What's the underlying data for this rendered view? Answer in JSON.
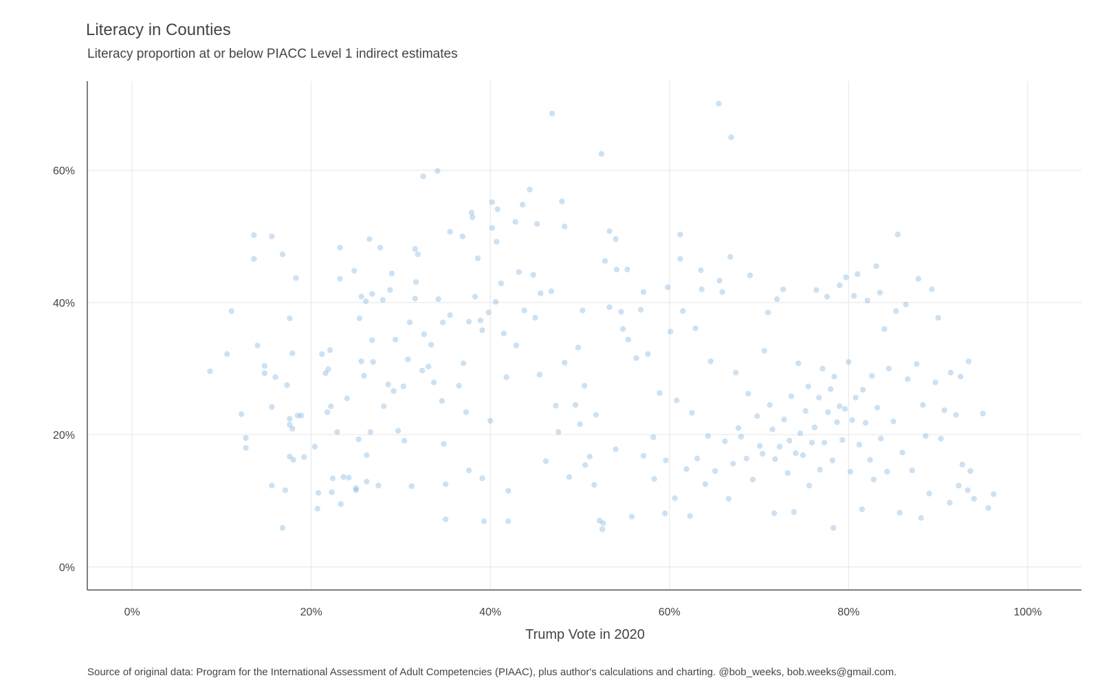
{
  "chart_data": {
    "type": "scatter",
    "title": "Literacy in Counties",
    "subtitle": "Literacy proportion at or below PIACC Level 1 indirect estimates",
    "xlabel": "Trump Vote in 2020",
    "ylabel": "",
    "caption": "Source of original data: Program for the International Assessment of Adult Competencies (PIAAC), plus author's calculations and charting. @bob_weeks, bob.weeks@gmail.com.",
    "xlim": [
      -5,
      106
    ],
    "ylim": [
      -3.5,
      73.5
    ],
    "x_ticks": [
      0,
      20,
      40,
      60,
      80,
      100
    ],
    "x_tick_labels": [
      "0%",
      "20%",
      "40%",
      "60%",
      "80%",
      "100%"
    ],
    "y_ticks": [
      0,
      20,
      40,
      60
    ],
    "y_tick_labels": [
      "0%",
      "20%",
      "40%",
      "60%"
    ],
    "grid": true,
    "legend": "none",
    "point_color": "#5b9bd5",
    "points": [
      [
        8.7,
        29.6
      ],
      [
        11.1,
        38.7
      ],
      [
        10.6,
        32.2
      ],
      [
        12.2,
        23.1
      ],
      [
        12.7,
        19.5
      ],
      [
        12.7,
        18.0
      ],
      [
        13.6,
        50.2
      ],
      [
        13.6,
        46.6
      ],
      [
        14.0,
        33.5
      ],
      [
        14.8,
        30.4
      ],
      [
        14.8,
        29.3
      ],
      [
        15.6,
        50.0
      ],
      [
        15.6,
        24.2
      ],
      [
        15.6,
        12.3
      ],
      [
        16.0,
        28.7
      ],
      [
        16.8,
        47.3
      ],
      [
        17.1,
        11.6
      ],
      [
        16.8,
        5.9
      ],
      [
        17.3,
        27.5
      ],
      [
        17.6,
        37.6
      ],
      [
        17.6,
        22.4
      ],
      [
        17.6,
        21.5
      ],
      [
        17.6,
        16.7
      ],
      [
        17.9,
        32.3
      ],
      [
        17.9,
        20.9
      ],
      [
        18.0,
        16.2
      ],
      [
        18.3,
        43.7
      ],
      [
        18.5,
        22.9
      ],
      [
        18.9,
        22.9
      ],
      [
        19.2,
        16.6
      ],
      [
        20.4,
        18.2
      ],
      [
        20.7,
        8.8
      ],
      [
        20.8,
        11.2
      ],
      [
        21.2,
        32.2
      ],
      [
        21.6,
        29.3
      ],
      [
        21.8,
        23.4
      ],
      [
        21.9,
        29.9
      ],
      [
        22.1,
        32.8
      ],
      [
        22.2,
        24.3
      ],
      [
        22.3,
        11.3
      ],
      [
        22.4,
        13.4
      ],
      [
        22.9,
        20.4
      ],
      [
        23.2,
        48.3
      ],
      [
        23.2,
        43.6
      ],
      [
        23.3,
        9.5
      ],
      [
        23.6,
        13.6
      ],
      [
        24.0,
        25.5
      ],
      [
        24.2,
        13.5
      ],
      [
        24.8,
        44.8
      ],
      [
        25.0,
        11.6
      ],
      [
        25.0,
        11.9
      ],
      [
        25.3,
        19.3
      ],
      [
        25.4,
        37.6
      ],
      [
        25.6,
        40.9
      ],
      [
        25.6,
        31.1
      ],
      [
        25.9,
        28.9
      ],
      [
        26.1,
        40.2
      ],
      [
        26.2,
        16.9
      ],
      [
        26.2,
        12.9
      ],
      [
        26.5,
        49.6
      ],
      [
        26.6,
        20.4
      ],
      [
        26.8,
        41.3
      ],
      [
        26.8,
        34.3
      ],
      [
        26.9,
        31.0
      ],
      [
        27.5,
        12.3
      ],
      [
        27.7,
        48.3
      ],
      [
        28.0,
        40.4
      ],
      [
        28.1,
        24.3
      ],
      [
        28.6,
        27.6
      ],
      [
        28.8,
        41.9
      ],
      [
        29.0,
        44.4
      ],
      [
        29.2,
        26.6
      ],
      [
        29.4,
        34.4
      ],
      [
        29.7,
        20.6
      ],
      [
        30.3,
        27.3
      ],
      [
        30.4,
        19.1
      ],
      [
        30.8,
        31.4
      ],
      [
        31.0,
        37.0
      ],
      [
        31.2,
        12.2
      ],
      [
        31.6,
        40.6
      ],
      [
        31.6,
        48.1
      ],
      [
        31.9,
        47.3
      ],
      [
        31.7,
        43.1
      ],
      [
        32.5,
        59.1
      ],
      [
        32.4,
        29.7
      ],
      [
        32.6,
        35.2
      ],
      [
        33.1,
        30.3
      ],
      [
        33.4,
        33.6
      ],
      [
        33.7,
        27.9
      ],
      [
        34.1,
        59.9
      ],
      [
        34.2,
        40.5
      ],
      [
        34.6,
        25.1
      ],
      [
        34.7,
        37.0
      ],
      [
        34.8,
        18.6
      ],
      [
        35.0,
        12.5
      ],
      [
        35.0,
        7.2
      ],
      [
        35.5,
        50.7
      ],
      [
        35.5,
        38.1
      ],
      [
        36.5,
        27.4
      ],
      [
        36.9,
        50.0
      ],
      [
        37.0,
        30.8
      ],
      [
        37.3,
        23.4
      ],
      [
        37.6,
        37.1
      ],
      [
        37.6,
        14.6
      ],
      [
        37.9,
        53.6
      ],
      [
        38.0,
        52.9
      ],
      [
        38.3,
        40.9
      ],
      [
        38.6,
        46.7
      ],
      [
        38.9,
        37.3
      ],
      [
        39.1,
        35.8
      ],
      [
        39.1,
        13.4
      ],
      [
        39.3,
        6.9
      ],
      [
        39.8,
        38.5
      ],
      [
        40.0,
        22.1
      ],
      [
        40.2,
        55.2
      ],
      [
        40.2,
        51.3
      ],
      [
        40.6,
        40.1
      ],
      [
        40.7,
        49.2
      ],
      [
        40.8,
        54.1
      ],
      [
        41.2,
        42.9
      ],
      [
        41.5,
        35.3
      ],
      [
        41.8,
        28.7
      ],
      [
        42.0,
        11.5
      ],
      [
        42.0,
        6.9
      ],
      [
        42.8,
        52.2
      ],
      [
        42.9,
        33.5
      ],
      [
        43.2,
        44.6
      ],
      [
        43.6,
        54.8
      ],
      [
        43.8,
        38.8
      ],
      [
        44.4,
        57.1
      ],
      [
        44.8,
        44.2
      ],
      [
        45.0,
        37.7
      ],
      [
        45.2,
        51.9
      ],
      [
        45.6,
        41.4
      ],
      [
        45.5,
        29.1
      ],
      [
        46.2,
        16.0
      ],
      [
        46.8,
        41.7
      ],
      [
        46.9,
        68.6
      ],
      [
        47.3,
        24.4
      ],
      [
        47.6,
        20.4
      ],
      [
        48.0,
        55.3
      ],
      [
        48.3,
        51.5
      ],
      [
        48.3,
        30.9
      ],
      [
        48.8,
        13.6
      ],
      [
        49.5,
        24.5
      ],
      [
        49.8,
        33.2
      ],
      [
        50.0,
        21.6
      ],
      [
        50.3,
        38.8
      ],
      [
        50.5,
        27.4
      ],
      [
        50.6,
        15.4
      ],
      [
        51.1,
        16.7
      ],
      [
        51.6,
        12.4
      ],
      [
        51.8,
        23.0
      ],
      [
        52.2,
        7.0
      ],
      [
        52.4,
        62.5
      ],
      [
        52.6,
        6.6
      ],
      [
        52.5,
        5.7
      ],
      [
        52.8,
        46.3
      ],
      [
        53.3,
        39.3
      ],
      [
        53.3,
        50.8
      ],
      [
        54.0,
        17.8
      ],
      [
        54.0,
        49.6
      ],
      [
        54.1,
        45.0
      ],
      [
        54.6,
        38.6
      ],
      [
        54.8,
        36.0
      ],
      [
        55.3,
        45.0
      ],
      [
        55.4,
        34.4
      ],
      [
        55.8,
        7.6
      ],
      [
        56.3,
        31.6
      ],
      [
        56.8,
        38.9
      ],
      [
        57.1,
        16.8
      ],
      [
        57.1,
        41.6
      ],
      [
        57.6,
        32.2
      ],
      [
        58.2,
        19.6
      ],
      [
        58.3,
        13.3
      ],
      [
        58.9,
        26.3
      ],
      [
        59.6,
        16.1
      ],
      [
        59.8,
        42.3
      ],
      [
        59.5,
        8.1
      ],
      [
        60.1,
        35.6
      ],
      [
        60.6,
        10.4
      ],
      [
        60.8,
        25.2
      ],
      [
        61.2,
        50.3
      ],
      [
        61.2,
        46.6
      ],
      [
        61.5,
        38.7
      ],
      [
        61.9,
        14.8
      ],
      [
        62.3,
        7.7
      ],
      [
        62.5,
        23.3
      ],
      [
        62.9,
        36.1
      ],
      [
        63.1,
        16.4
      ],
      [
        63.5,
        44.9
      ],
      [
        63.6,
        42.0
      ],
      [
        64.0,
        12.5
      ],
      [
        64.3,
        19.8
      ],
      [
        64.6,
        31.1
      ],
      [
        65.1,
        14.5
      ],
      [
        65.5,
        70.1
      ],
      [
        65.6,
        43.3
      ],
      [
        65.9,
        41.6
      ],
      [
        66.2,
        19.0
      ],
      [
        66.6,
        10.3
      ],
      [
        66.8,
        46.9
      ],
      [
        66.9,
        65.0
      ],
      [
        67.1,
        15.6
      ],
      [
        67.4,
        29.4
      ],
      [
        67.7,
        21.0
      ],
      [
        68.0,
        19.7
      ],
      [
        68.6,
        16.4
      ],
      [
        68.8,
        26.2
      ],
      [
        69.0,
        44.1
      ],
      [
        69.3,
        13.2
      ],
      [
        69.8,
        22.8
      ],
      [
        70.1,
        18.3
      ],
      [
        70.4,
        17.1
      ],
      [
        70.6,
        32.7
      ],
      [
        71.0,
        38.5
      ],
      [
        71.2,
        24.5
      ],
      [
        71.5,
        20.8
      ],
      [
        71.7,
        8.1
      ],
      [
        71.8,
        16.3
      ],
      [
        72.0,
        40.5
      ],
      [
        72.3,
        18.2
      ],
      [
        72.7,
        42.0
      ],
      [
        72.8,
        22.3
      ],
      [
        73.2,
        14.2
      ],
      [
        73.4,
        19.1
      ],
      [
        73.6,
        25.8
      ],
      [
        73.9,
        8.3
      ],
      [
        74.1,
        17.2
      ],
      [
        74.4,
        30.8
      ],
      [
        74.6,
        20.2
      ],
      [
        74.9,
        16.9
      ],
      [
        75.2,
        23.6
      ],
      [
        75.5,
        27.3
      ],
      [
        75.6,
        12.3
      ],
      [
        75.9,
        18.8
      ],
      [
        76.2,
        21.1
      ],
      [
        76.4,
        41.9
      ],
      [
        76.7,
        25.6
      ],
      [
        76.8,
        14.7
      ],
      [
        77.1,
        30.0
      ],
      [
        77.3,
        18.8
      ],
      [
        77.6,
        40.9
      ],
      [
        77.7,
        23.4
      ],
      [
        78.0,
        26.9
      ],
      [
        78.2,
        16.1
      ],
      [
        78.3,
        5.9
      ],
      [
        78.4,
        28.8
      ],
      [
        78.7,
        21.9
      ],
      [
        79.0,
        42.6
      ],
      [
        79.0,
        24.3
      ],
      [
        79.3,
        19.2
      ],
      [
        79.6,
        23.9
      ],
      [
        79.7,
        43.8
      ],
      [
        80.0,
        31.0
      ],
      [
        80.2,
        14.4
      ],
      [
        80.4,
        22.2
      ],
      [
        80.6,
        41.0
      ],
      [
        80.8,
        25.6
      ],
      [
        81.0,
        44.3
      ],
      [
        81.2,
        18.5
      ],
      [
        81.5,
        8.7
      ],
      [
        81.6,
        26.8
      ],
      [
        81.9,
        21.8
      ],
      [
        82.1,
        40.3
      ],
      [
        82.4,
        16.2
      ],
      [
        82.6,
        28.9
      ],
      [
        82.8,
        13.2
      ],
      [
        83.1,
        45.5
      ],
      [
        83.2,
        24.1
      ],
      [
        83.5,
        41.5
      ],
      [
        83.6,
        19.4
      ],
      [
        84.0,
        36.0
      ],
      [
        84.3,
        14.4
      ],
      [
        84.5,
        30.0
      ],
      [
        85.0,
        22.0
      ],
      [
        85.3,
        38.7
      ],
      [
        85.5,
        50.3
      ],
      [
        85.7,
        8.2
      ],
      [
        86.0,
        17.3
      ],
      [
        86.4,
        39.7
      ],
      [
        86.6,
        28.4
      ],
      [
        87.1,
        14.6
      ],
      [
        87.6,
        30.7
      ],
      [
        87.8,
        43.6
      ],
      [
        88.1,
        7.4
      ],
      [
        88.3,
        24.5
      ],
      [
        88.6,
        19.8
      ],
      [
        89.0,
        11.1
      ],
      [
        89.3,
        42.0
      ],
      [
        89.7,
        27.9
      ],
      [
        90.0,
        37.7
      ],
      [
        90.3,
        19.4
      ],
      [
        90.7,
        23.7
      ],
      [
        91.3,
        9.7
      ],
      [
        91.4,
        29.4
      ],
      [
        92.0,
        23.0
      ],
      [
        92.3,
        12.3
      ],
      [
        92.5,
        28.8
      ],
      [
        92.7,
        15.5
      ],
      [
        93.3,
        11.6
      ],
      [
        93.4,
        31.1
      ],
      [
        93.6,
        14.5
      ],
      [
        94.0,
        10.3
      ],
      [
        95.0,
        23.2
      ],
      [
        95.6,
        8.9
      ],
      [
        96.2,
        11.0
      ]
    ]
  }
}
